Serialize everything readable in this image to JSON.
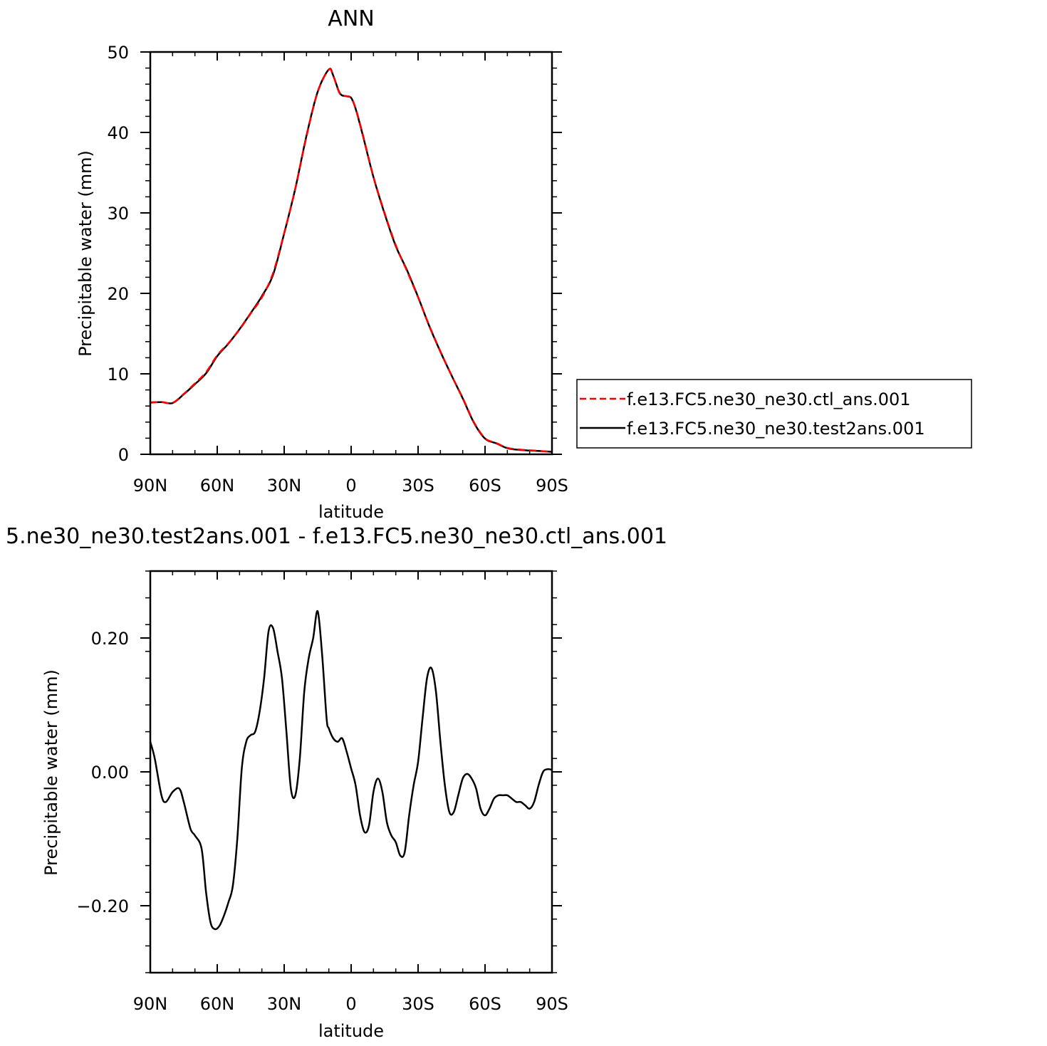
{
  "chart_data": [
    {
      "type": "line",
      "title": "ANN",
      "xlabel": "latitude",
      "ylabel": "Precipitable water (mm)",
      "xlim": [
        90,
        -90
      ],
      "ylim": [
        0,
        50
      ],
      "xticks": [
        90,
        60,
        30,
        0,
        -30,
        -60,
        -90
      ],
      "xtick_labels": [
        "90N",
        "60N",
        "30N",
        "0",
        "30S",
        "60S",
        "90S"
      ],
      "yticks": [
        0,
        10,
        20,
        30,
        40,
        50
      ],
      "ytick_labels": [
        "0",
        "10",
        "20",
        "30",
        "40",
        "50"
      ],
      "legend_position": "right",
      "series": [
        {
          "name": "f.e13.FC5.ne30_ne30.ctl_ans.001",
          "color": "#ff0000",
          "dash": "dashed",
          "x": [
            90,
            85,
            80,
            75,
            70,
            65,
            60,
            55,
            50,
            45,
            40,
            35,
            30,
            25,
            20,
            15,
            10,
            8,
            5,
            2,
            0,
            -2,
            -5,
            -10,
            -15,
            -20,
            -25,
            -30,
            -35,
            -40,
            -45,
            -50,
            -55,
            -60,
            -65,
            -70,
            -75,
            -80,
            -85,
            -90
          ],
          "y": [
            6.4,
            6.5,
            6.4,
            7.5,
            8.8,
            10.2,
            12.3,
            13.8,
            15.5,
            17.5,
            19.5,
            22.5,
            27.5,
            33.0,
            39.5,
            45.0,
            47.8,
            47.0,
            44.8,
            44.5,
            44.3,
            43.0,
            40.0,
            34.5,
            30.0,
            26.0,
            22.8,
            19.5,
            16.0,
            12.8,
            9.8,
            7.0,
            4.0,
            2.0,
            1.4,
            0.8,
            0.6,
            0.5,
            0.4,
            0.3
          ],
          "values": [
            6.4,
            6.5,
            6.4,
            7.5,
            8.8,
            10.2,
            12.3,
            13.8,
            15.5,
            17.5,
            19.5,
            22.5,
            27.5,
            33.0,
            39.5,
            45.0,
            47.8,
            47.0,
            44.8,
            44.5,
            44.3,
            43.0,
            40.0,
            34.5,
            30.0,
            26.0,
            22.8,
            19.5,
            16.0,
            12.8,
            9.8,
            7.0,
            4.0,
            2.0,
            1.4,
            0.8,
            0.6,
            0.5,
            0.4,
            0.3
          ]
        },
        {
          "name": "f.e13.FC5.ne30_ne30.test2ans.001",
          "color": "#000000",
          "dash": "solid",
          "x": [
            90,
            85,
            80,
            75,
            70,
            65,
            60,
            55,
            50,
            45,
            40,
            35,
            30,
            25,
            20,
            15,
            10,
            8,
            5,
            2,
            0,
            -2,
            -5,
            -10,
            -15,
            -20,
            -25,
            -30,
            -35,
            -40,
            -45,
            -50,
            -55,
            -60,
            -65,
            -70,
            -75,
            -80,
            -85,
            -90
          ],
          "y": [
            6.45,
            6.48,
            6.37,
            7.46,
            8.71,
            10.07,
            12.2,
            13.75,
            15.55,
            17.55,
            19.65,
            22.3,
            27.45,
            33.05,
            39.6,
            45.05,
            47.83,
            47.06,
            44.85,
            44.5,
            44.3,
            42.95,
            39.9,
            34.45,
            29.9,
            25.88,
            22.9,
            19.55,
            15.95,
            12.75,
            9.8,
            6.95,
            3.94,
            1.95,
            1.36,
            0.76,
            0.56,
            0.46,
            0.4,
            0.3
          ],
          "values": [
            6.45,
            6.48,
            6.37,
            7.46,
            8.71,
            10.07,
            12.2,
            13.75,
            15.55,
            17.55,
            19.65,
            22.3,
            27.45,
            33.05,
            39.6,
            45.05,
            47.83,
            47.06,
            44.85,
            44.5,
            44.3,
            42.95,
            39.9,
            34.45,
            29.9,
            25.88,
            22.9,
            19.55,
            15.95,
            12.75,
            9.8,
            6.95,
            3.94,
            1.95,
            1.36,
            0.76,
            0.56,
            0.46,
            0.4,
            0.3
          ]
        }
      ]
    },
    {
      "type": "line",
      "title": "5.ne30_ne30.test2ans.001 - f.e13.FC5.ne30_ne30.ctl_ans.001",
      "xlabel": "latitude",
      "ylabel": "Precipitable water (mm)",
      "xlim": [
        90,
        -90
      ],
      "ylim": [
        -0.3,
        0.3
      ],
      "xticks": [
        90,
        60,
        30,
        0,
        -30,
        -60,
        -90
      ],
      "xtick_labels": [
        "90N",
        "60N",
        "30N",
        "0",
        "30S",
        "60S",
        "90S"
      ],
      "yticks": [
        -0.2,
        0.0,
        0.2
      ],
      "ytick_labels": [
        "-0.20",
        "0.00",
        "0.20"
      ],
      "series": [
        {
          "color": "#000000",
          "dash": "solid",
          "x": [
            90,
            88,
            85,
            83,
            80,
            77,
            75,
            72,
            70,
            67,
            65,
            63,
            61,
            59,
            57,
            55,
            53,
            51,
            49,
            47,
            45,
            43,
            41,
            39,
            37,
            35,
            33,
            31,
            29,
            27,
            25,
            23,
            21,
            19,
            17,
            15,
            13,
            11,
            10,
            8,
            6,
            4,
            2,
            0,
            -2,
            -4,
            -6,
            -8,
            -10,
            -12,
            -14,
            -16,
            -18,
            -20,
            -22,
            -24,
            -26,
            -28,
            -30,
            -32,
            -34,
            -36,
            -38,
            -40,
            -42,
            -44,
            -46,
            -48,
            -50,
            -52,
            -54,
            -56,
            -58,
            -60,
            -62,
            -64,
            -66,
            -68,
            -70,
            -72,
            -74,
            -76,
            -78,
            -80,
            -82,
            -84,
            -86,
            -88,
            -90
          ],
          "y": [
            0.045,
            0.02,
            -0.035,
            -0.045,
            -0.03,
            -0.025,
            -0.045,
            -0.085,
            -0.095,
            -0.115,
            -0.18,
            -0.225,
            -0.235,
            -0.23,
            -0.215,
            -0.195,
            -0.17,
            -0.1,
            0.005,
            0.045,
            0.055,
            0.06,
            0.09,
            0.14,
            0.21,
            0.215,
            0.18,
            0.14,
            0.06,
            -0.025,
            -0.035,
            0.02,
            0.12,
            0.17,
            0.2,
            0.24,
            0.175,
            0.08,
            0.065,
            0.05,
            0.045,
            0.05,
            0.03,
            0.005,
            -0.02,
            -0.065,
            -0.09,
            -0.08,
            -0.03,
            -0.01,
            -0.03,
            -0.075,
            -0.095,
            -0.105,
            -0.125,
            -0.12,
            -0.065,
            -0.02,
            0.015,
            0.08,
            0.14,
            0.155,
            0.12,
            0.045,
            -0.02,
            -0.06,
            -0.06,
            -0.035,
            -0.01,
            -0.003,
            -0.01,
            -0.025,
            -0.055,
            -0.065,
            -0.055,
            -0.04,
            -0.035,
            -0.035,
            -0.035,
            -0.04,
            -0.045,
            -0.045,
            -0.05,
            -0.055,
            -0.045,
            -0.02,
            0.0,
            0.004,
            0.003
          ],
          "values": [
            0.045,
            0.02,
            -0.035,
            -0.045,
            -0.03,
            -0.025,
            -0.045,
            -0.085,
            -0.095,
            -0.115,
            -0.18,
            -0.225,
            -0.235,
            -0.23,
            -0.215,
            -0.195,
            -0.17,
            -0.1,
            0.005,
            0.045,
            0.055,
            0.06,
            0.09,
            0.14,
            0.21,
            0.215,
            0.18,
            0.14,
            0.06,
            -0.025,
            -0.035,
            0.02,
            0.12,
            0.17,
            0.2,
            0.24,
            0.175,
            0.08,
            0.065,
            0.05,
            0.045,
            0.05,
            0.03,
            0.005,
            -0.02,
            -0.065,
            -0.09,
            -0.08,
            -0.03,
            -0.01,
            -0.03,
            -0.075,
            -0.095,
            -0.105,
            -0.125,
            -0.12,
            -0.065,
            -0.02,
            0.015,
            0.08,
            0.14,
            0.155,
            0.12,
            0.045,
            -0.02,
            -0.06,
            -0.06,
            -0.035,
            -0.01,
            -0.003,
            -0.01,
            -0.025,
            -0.055,
            -0.065,
            -0.055,
            -0.04,
            -0.035,
            -0.035,
            -0.035,
            -0.04,
            -0.045,
            -0.045,
            -0.05,
            -0.055,
            -0.045,
            -0.02,
            0.0,
            0.004,
            0.003
          ]
        }
      ]
    }
  ]
}
